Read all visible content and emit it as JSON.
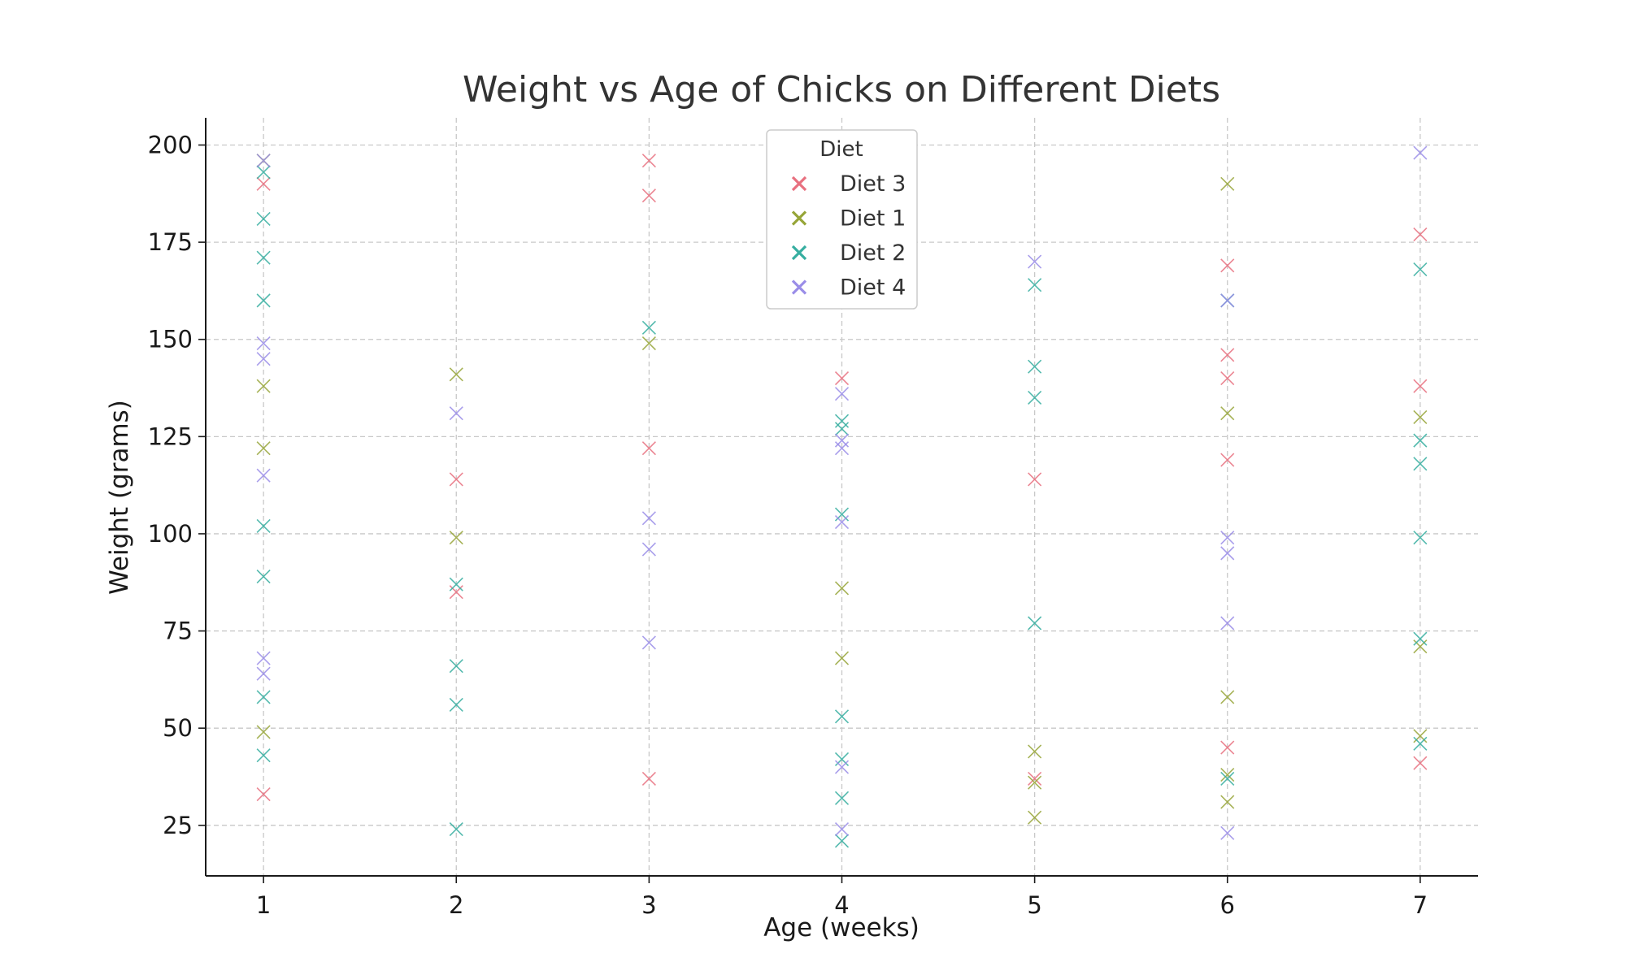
{
  "chart_data": {
    "type": "scatter",
    "title": "Weight vs Age of Chicks on Different Diets",
    "xlabel": "Age (weeks)",
    "ylabel": "Weight (grams)",
    "xlim": [
      0.7,
      7.3
    ],
    "ylim": [
      12,
      207
    ],
    "xticks": [
      1,
      2,
      3,
      4,
      5,
      6,
      7
    ],
    "yticks": [
      25,
      50,
      75,
      100,
      125,
      150,
      175,
      200
    ],
    "grid": true,
    "marker": "x",
    "legend": {
      "title": "Diet",
      "position": "top-center"
    },
    "series": [
      {
        "name": "Diet 3",
        "color": "#e8707f",
        "points": [
          [
            1,
            190
          ],
          [
            1,
            33
          ],
          [
            2,
            114
          ],
          [
            2,
            85
          ],
          [
            3,
            196
          ],
          [
            3,
            187
          ],
          [
            3,
            122
          ],
          [
            3,
            37
          ],
          [
            4,
            187
          ],
          [
            4,
            140
          ],
          [
            5,
            114
          ],
          [
            5,
            37
          ],
          [
            6,
            169
          ],
          [
            6,
            146
          ],
          [
            6,
            140
          ],
          [
            6,
            119
          ],
          [
            6,
            45
          ],
          [
            7,
            177
          ],
          [
            7,
            138
          ],
          [
            7,
            41
          ]
        ]
      },
      {
        "name": "Diet 1",
        "color": "#96a538",
        "points": [
          [
            1,
            196
          ],
          [
            1,
            138
          ],
          [
            1,
            122
          ],
          [
            1,
            49
          ],
          [
            2,
            141
          ],
          [
            2,
            99
          ],
          [
            3,
            149
          ],
          [
            4,
            86
          ],
          [
            4,
            68
          ],
          [
            5,
            44
          ],
          [
            5,
            36
          ],
          [
            5,
            27
          ],
          [
            6,
            190
          ],
          [
            6,
            131
          ],
          [
            6,
            58
          ],
          [
            6,
            38
          ],
          [
            6,
            31
          ],
          [
            7,
            130
          ],
          [
            7,
            71
          ],
          [
            7,
            48
          ]
        ]
      },
      {
        "name": "Diet 2",
        "color": "#36aea0",
        "points": [
          [
            1,
            193
          ],
          [
            1,
            181
          ],
          [
            1,
            171
          ],
          [
            1,
            160
          ],
          [
            1,
            102
          ],
          [
            1,
            89
          ],
          [
            1,
            58
          ],
          [
            1,
            43
          ],
          [
            2,
            87
          ],
          [
            2,
            66
          ],
          [
            2,
            56
          ],
          [
            2,
            24
          ],
          [
            3,
            153
          ],
          [
            4,
            129
          ],
          [
            4,
            127
          ],
          [
            4,
            105
          ],
          [
            4,
            53
          ],
          [
            4,
            42
          ],
          [
            4,
            32
          ],
          [
            4,
            21
          ],
          [
            5,
            164
          ],
          [
            5,
            143
          ],
          [
            5,
            135
          ],
          [
            5,
            77
          ],
          [
            6,
            160
          ],
          [
            6,
            37
          ],
          [
            7,
            168
          ],
          [
            7,
            124
          ],
          [
            7,
            118
          ],
          [
            7,
            99
          ],
          [
            7,
            73
          ],
          [
            7,
            46
          ]
        ]
      },
      {
        "name": "Diet 4",
        "color": "#9a8de8",
        "points": [
          [
            1,
            196
          ],
          [
            1,
            149
          ],
          [
            1,
            145
          ],
          [
            1,
            115
          ],
          [
            1,
            68
          ],
          [
            1,
            64
          ],
          [
            2,
            131
          ],
          [
            3,
            104
          ],
          [
            3,
            96
          ],
          [
            3,
            72
          ],
          [
            4,
            136
          ],
          [
            4,
            124
          ],
          [
            4,
            122
          ],
          [
            4,
            103
          ],
          [
            4,
            40
          ],
          [
            4,
            24
          ],
          [
            5,
            170
          ],
          [
            6,
            160
          ],
          [
            6,
            99
          ],
          [
            6,
            95
          ],
          [
            6,
            77
          ],
          [
            6,
            23
          ],
          [
            7,
            198
          ]
        ]
      }
    ]
  }
}
